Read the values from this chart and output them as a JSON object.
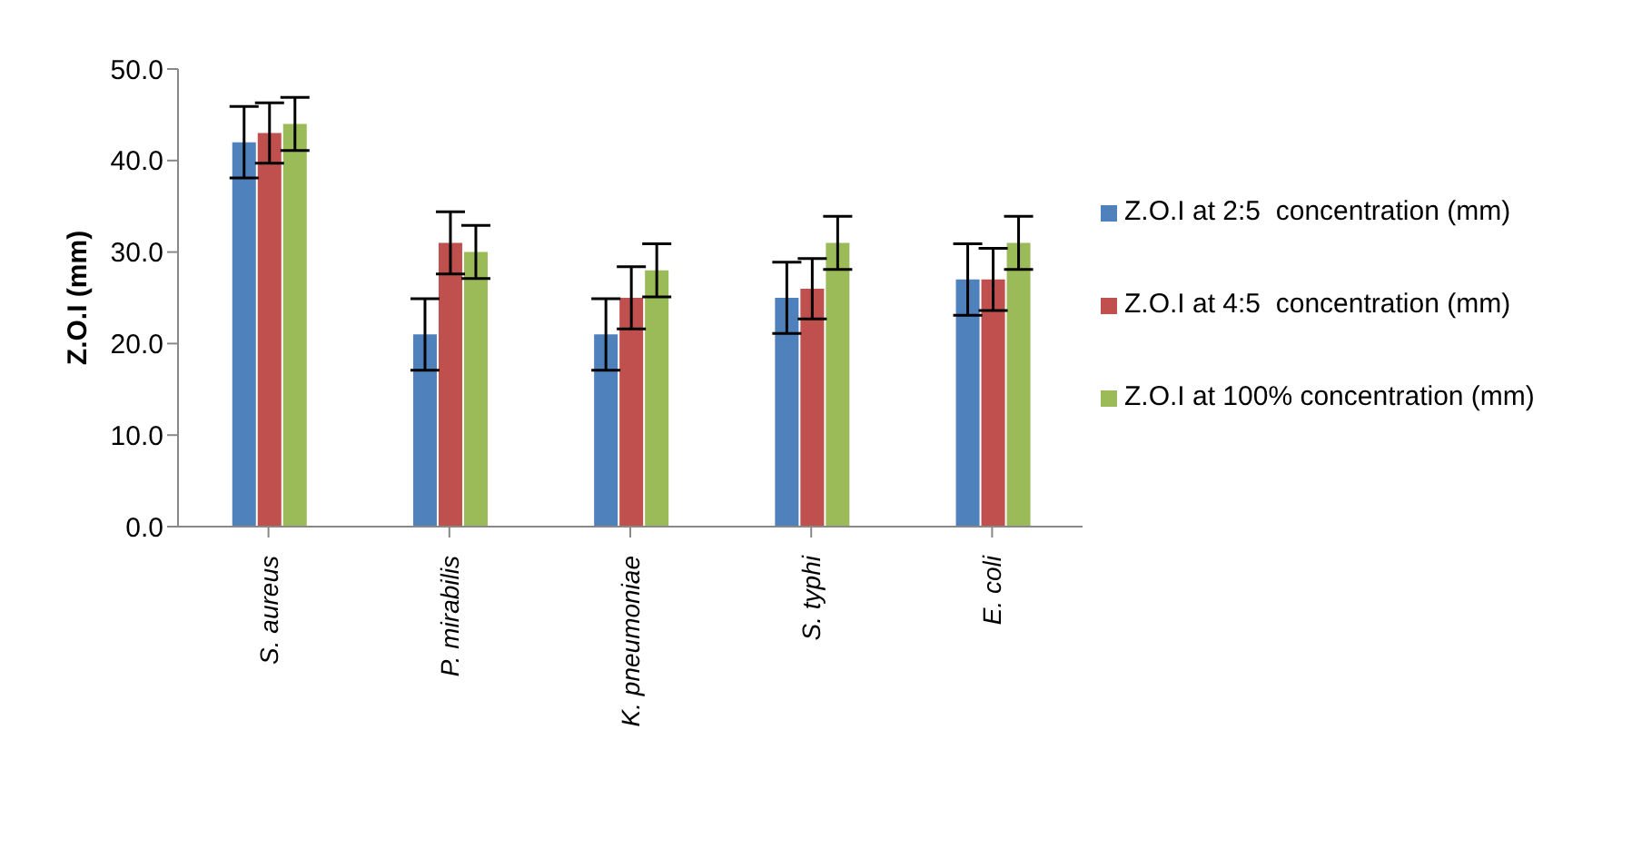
{
  "chart_data": {
    "type": "bar",
    "ylabel": "Z.O.I (mm)",
    "categories": [
      "S. aureus",
      "P. mirabilis",
      "K. pneumoniae",
      "S. typhi",
      "E. coli"
    ],
    "series": [
      {
        "name": "Z.O.I at 2:5  concentration (mm)",
        "color": "#4f81bd",
        "values": [
          42,
          21,
          21,
          25,
          27
        ],
        "errors": [
          3.9,
          3.9,
          3.9,
          3.9,
          3.9
        ]
      },
      {
        "name": "Z.O.I at 4:5  concentration (mm)",
        "color": "#c0504d",
        "values": [
          43,
          31,
          25,
          26,
          27
        ],
        "errors": [
          3.3,
          3.4,
          3.4,
          3.3,
          3.4
        ]
      },
      {
        "name": "Z.O.I at 100% concentration (mm)",
        "color": "#9bbb59",
        "values": [
          44,
          30,
          28,
          31,
          31
        ],
        "errors": [
          2.9,
          2.9,
          2.9,
          2.9,
          2.9
        ]
      }
    ],
    "ylim": [
      0,
      50
    ],
    "yticks": [
      {
        "value": 0,
        "label": "0.0"
      },
      {
        "value": 10,
        "label": "10.0"
      },
      {
        "value": 20,
        "label": "20.0"
      },
      {
        "value": 30,
        "label": "30.0"
      },
      {
        "value": 40,
        "label": "40.0"
      },
      {
        "value": 50,
        "label": "50.0"
      }
    ],
    "grid": false,
    "legend": "right"
  }
}
